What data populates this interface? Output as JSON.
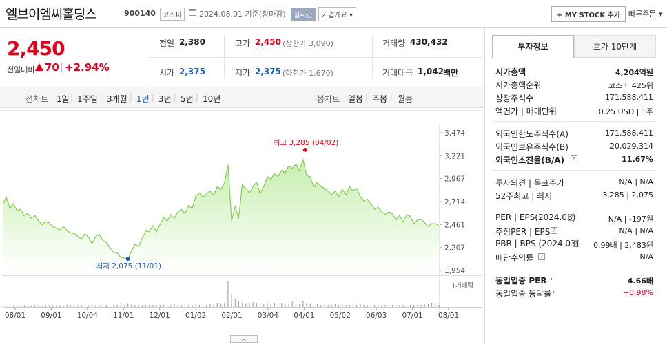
{
  "header": {
    "company_name": "엘브이엠씨홀딩스",
    "stock_code": "900140",
    "market": "코스피",
    "base_date": "2024.08.01 기준(장마감)",
    "realtime_label": "실시간",
    "company_summary_label": "기업개요 ▾",
    "my_stock_label": "+ MY STOCK 추가",
    "quick_order_label": "빠른주문 ▾"
  },
  "price": {
    "current": "2,450",
    "change_label": "전일대비",
    "change_amount": "70",
    "change_rate": "+2.94%",
    "change_sep": "|"
  },
  "stats": {
    "prev_close_label": "전일",
    "prev_close": "2,380",
    "high_label": "고가",
    "high": "2,450",
    "upper_limit": "(상한가 3,090)",
    "volume_label": "거래량",
    "volume": "430,432",
    "open_label": "시가",
    "open": "2,375",
    "low_label": "저가",
    "low": "2,375",
    "lower_limit": "(하한가 1,670)",
    "trade_value_label": "거래대금",
    "trade_value": "1,042",
    "trade_value_unit": "백만"
  },
  "periods": {
    "line_label": "선차트",
    "line_items": [
      "1일",
      "1주일",
      "3개월",
      "1년",
      "3년",
      "5년",
      "10년"
    ],
    "selected": "1년",
    "candle_label": "봉차트",
    "candle_items": [
      "일봉",
      "주봉",
      "월봉"
    ],
    "sep": "|"
  },
  "chart_data": {
    "type": "area",
    "y_ticks": [
      "3,474",
      "3,221",
      "2,967",
      "2,714",
      "2,461",
      "2,207",
      "1,954"
    ],
    "ylim": [
      1954,
      3474
    ],
    "x_ticks": [
      "08/01",
      "09/01",
      "10/04",
      "11/01",
      "12/01",
      "01/02",
      "02/01",
      "03/04",
      "04/01",
      "05/02",
      "06/03",
      "07/01",
      "08/01"
    ],
    "high_annotation": "최고 3,285 (04/02)",
    "low_annotation": "최저 2,075 (11/01)",
    "high_value": 3285,
    "low_value": 2075,
    "volume_label": "거래량",
    "colors": {
      "line": "#7fcf4d",
      "fill_top": "#c7eeae",
      "fill_bottom": "#ffffff",
      "high": "#e3001b",
      "low": "#1a5fc7",
      "volume": "#9da9c6"
    },
    "series": [
      {
        "values": [
          2690,
          2760,
          2640,
          2690,
          2610,
          2630,
          2560,
          2580,
          2530,
          2560,
          2500,
          2460,
          2490,
          2480,
          2440,
          2420,
          2400,
          2440,
          2390,
          2370,
          2360,
          2330,
          2300,
          2360,
          2320,
          2250,
          2330,
          2350,
          2290,
          2260,
          2200,
          2150,
          2150,
          2100,
          2090,
          2075,
          2170,
          2240,
          2220,
          2310,
          2390,
          2380,
          2450,
          2380,
          2460,
          2540,
          2500,
          2570,
          2530,
          2600,
          2630,
          2580,
          2670,
          2640,
          2770,
          2810,
          2760,
          2800,
          2830,
          2780,
          2880,
          2850,
          2920,
          3120,
          2500,
          2660,
          2530,
          2900,
          2860,
          2810,
          2880,
          2930,
          2800,
          2880,
          2990,
          2960,
          3020,
          2990,
          3060,
          3030,
          3110,
          3080,
          3130,
          3060,
          3180,
          3000,
          2990,
          2870,
          2930,
          2880,
          2860,
          2830,
          2790,
          2830,
          2770,
          2850,
          2790,
          2880,
          2830,
          2860,
          2770,
          2720,
          2740,
          2690,
          2630,
          2650,
          2600,
          2570,
          2600,
          2580,
          2510,
          2560,
          2490,
          2570,
          2550,
          2470,
          2510,
          2520,
          2480,
          2440,
          2470,
          2470,
          2450
        ],
        "volume": [
          3,
          2,
          4,
          2,
          3,
          2,
          5,
          3,
          2,
          4,
          3,
          2,
          6,
          3,
          2,
          3,
          4,
          2,
          5,
          3,
          4,
          3,
          6,
          4,
          3,
          5,
          4,
          6,
          8,
          5,
          4,
          6,
          5,
          4,
          3,
          10,
          6,
          5,
          4,
          7,
          5,
          6,
          4,
          5,
          6,
          8,
          5,
          4,
          9,
          6,
          5,
          7,
          6,
          5,
          8,
          7,
          6,
          5,
          9,
          8,
          12,
          10,
          14,
          85,
          40,
          25,
          18,
          14,
          10,
          12,
          16,
          12,
          9,
          8,
          14,
          10,
          12,
          9,
          11,
          8,
          10,
          18,
          12,
          9,
          20,
          14,
          10,
          8,
          9,
          7,
          8,
          6,
          7,
          9,
          6,
          8,
          7,
          6,
          8,
          7,
          9,
          6,
          5,
          8,
          6,
          7,
          5,
          6,
          7,
          5,
          6,
          5,
          4,
          6,
          5,
          7,
          5,
          6,
          8,
          9,
          12,
          7,
          6
        ]
      }
    ]
  },
  "right_panel": {
    "tab_invest": "투자정보",
    "tab_orderbook": "호가 10단계",
    "market_cap_label": "시가총액",
    "market_cap": "4,204억원",
    "market_cap_rank_label": "시가총액순위",
    "market_cap_rank": "코스피 425위",
    "shares_label": "상장주식수",
    "shares": "171,588,411",
    "par_label": "액면가 | 매매단위",
    "par": "0.25 USD | 1주",
    "foreign_limit_label": "외국인한도주식수(A)",
    "foreign_limit": "171,588,411",
    "foreign_hold_label": "외국인보유주식수(B)",
    "foreign_hold": "20,029,314",
    "foreign_rate_label": "외국인소진율(B/A)",
    "foreign_rate": "11.67%",
    "opinion_label": "투자의견 | 목표주가",
    "opinion": "N/A | N/A",
    "week52_label": "52주최고 | 최저",
    "week52": "3,285 | 2,075",
    "per_eps_label": "PER | EPS(2024.03)",
    "per_eps": "N/A | -197원",
    "est_per_eps_label": "추정PER | EPS",
    "est_per_eps": "N/A | N/A",
    "pbr_bps_label": "PBR | BPS (2024.03)",
    "pbr_bps": "0.99배 | 2,483원",
    "dividend_label": "배당수익률",
    "dividend": "N/A",
    "industry_per_label": "동일업종 PER",
    "industry_per": "4.66배",
    "industry_rate_label": "동일업종 등락률",
    "industry_rate": "+0.98%"
  }
}
